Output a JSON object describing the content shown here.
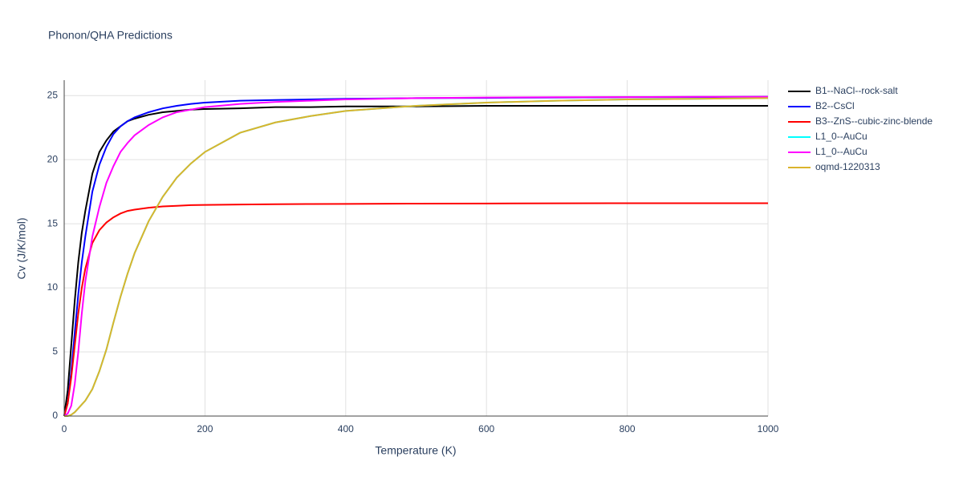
{
  "chart_data": {
    "type": "line",
    "title": "Phonon/QHA Predictions",
    "x_label": "Temperature (K)",
    "y_label": "Cv (J/K/mol)",
    "x": [
      0,
      5,
      10,
      15,
      20,
      25,
      30,
      40,
      50,
      60,
      70,
      80,
      90,
      100,
      120,
      140,
      160,
      180,
      200,
      250,
      300,
      350,
      400,
      500,
      600,
      700,
      800,
      900,
      1000
    ],
    "series": [
      {
        "name": "B1--NaCl--rock-salt",
        "color": "#000000",
        "values": [
          0,
          2,
          5.5,
          9,
          12,
          14.3,
          16,
          18.9,
          20.6,
          21.5,
          22.2,
          22.6,
          23.0,
          23.2,
          23.5,
          23.7,
          23.8,
          23.9,
          23.95,
          24.0,
          24.1,
          24.1,
          24.15,
          24.15,
          24.2,
          24.2,
          24.2,
          24.2,
          24.2
        ]
      },
      {
        "name": "B2--CsCl",
        "color": "#0000ff",
        "values": [
          0,
          1,
          3.5,
          6.5,
          9.5,
          12,
          14,
          17.5,
          19.6,
          21,
          22,
          22.6,
          23.0,
          23.3,
          23.7,
          24.0,
          24.2,
          24.35,
          24.45,
          24.6,
          24.65,
          24.7,
          24.75,
          24.8,
          24.82,
          24.85,
          24.87,
          24.88,
          24.9
        ]
      },
      {
        "name": "B3--ZnS--cubic-zinc-blende",
        "color": "#ff0000",
        "values": [
          0,
          1,
          3,
          5.5,
          8,
          10,
          11.5,
          13.5,
          14.5,
          15.1,
          15.5,
          15.8,
          16.0,
          16.1,
          16.25,
          16.35,
          16.4,
          16.45,
          16.47,
          16.5,
          16.52,
          16.54,
          16.55,
          16.57,
          16.58,
          16.59,
          16.6,
          16.6,
          16.6
        ]
      },
      {
        "name": "L1_0--AuCu",
        "color": "#00ffff",
        "values": [
          0,
          0,
          0.1,
          0.3,
          0.6,
          0.9,
          1.2,
          2.1,
          3.5,
          5.2,
          7.3,
          9.3,
          11.1,
          12.7,
          15.2,
          17.1,
          18.6,
          19.7,
          20.6,
          22.1,
          22.9,
          23.4,
          23.8,
          24.2,
          24.45,
          24.6,
          24.7,
          24.75,
          24.8
        ]
      },
      {
        "name": "L1_0--AuCu",
        "color": "#ff00ff",
        "values": [
          0,
          0.2,
          0.8,
          2.5,
          5,
          8,
          10.5,
          14,
          16.3,
          18.2,
          19.5,
          20.6,
          21.3,
          21.9,
          22.7,
          23.3,
          23.7,
          23.9,
          24.1,
          24.35,
          24.5,
          24.6,
          24.7,
          24.8,
          24.85,
          24.87,
          24.88,
          24.9,
          24.9
        ]
      },
      {
        "name": "oqmd-1220313",
        "color": "#dbb42c",
        "values": [
          0,
          0,
          0.1,
          0.3,
          0.6,
          0.9,
          1.2,
          2.1,
          3.5,
          5.2,
          7.3,
          9.3,
          11.1,
          12.7,
          15.2,
          17.1,
          18.6,
          19.7,
          20.6,
          22.1,
          22.9,
          23.4,
          23.8,
          24.2,
          24.45,
          24.6,
          24.7,
          24.75,
          24.8
        ]
      }
    ],
    "xlim": [
      0,
      1000
    ],
    "xticks": [
      0,
      200,
      400,
      600,
      800,
      1000
    ],
    "ylim": [
      0,
      26.2
    ],
    "yticks": [
      0,
      5,
      10,
      15,
      20,
      25
    ],
    "grid": true
  }
}
